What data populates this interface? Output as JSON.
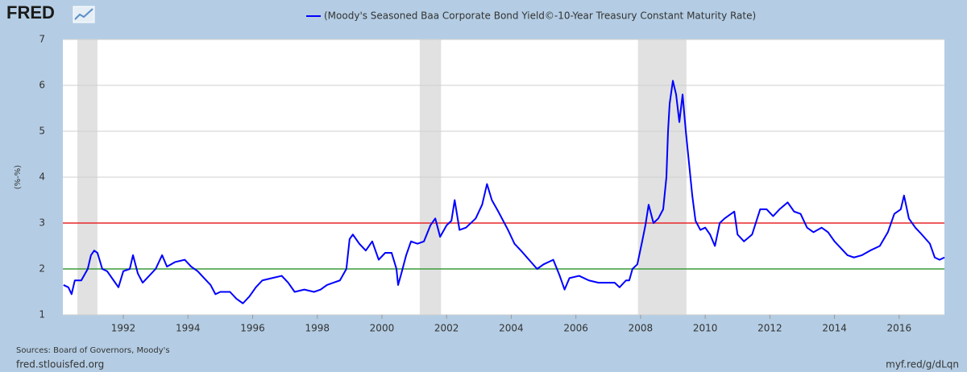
{
  "chart_data": {
    "type": "line",
    "logo": "FRED",
    "ylabel": "(%-%)",
    "source": "Sources: Board of Governors, Moody's",
    "site": "fred.stlouisfed.org",
    "short_url": "myf.red/g/dLqn",
    "xlim": [
      1990.13,
      2017.4
    ],
    "xticks": [
      1992,
      1994,
      1996,
      1998,
      2000,
      2002,
      2004,
      2006,
      2008,
      2010,
      2012,
      2014,
      2016
    ],
    "ylim": [
      1,
      7
    ],
    "yticks": [
      1,
      2,
      3,
      4,
      5,
      6,
      7
    ],
    "grid": true,
    "recessions": [
      [
        1990.58,
        1991.2
      ],
      [
        2001.17,
        2001.83
      ],
      [
        2007.92,
        2009.42
      ]
    ],
    "reference_lines": [
      {
        "value": 3,
        "color": "#e8272a"
      },
      {
        "value": 2,
        "color": "#3a9a3a"
      }
    ],
    "x": [
      1990.15,
      1990.3,
      1990.4,
      1990.5,
      1990.7,
      1990.9,
      1991.0,
      1991.1,
      1991.2,
      1991.35,
      1991.5,
      1991.7,
      1991.85,
      1992.0,
      1992.2,
      1992.3,
      1992.45,
      1992.6,
      1992.8,
      1993.0,
      1993.2,
      1993.35,
      1993.6,
      1993.9,
      1994.1,
      1994.3,
      1994.5,
      1994.7,
      1994.85,
      1995.0,
      1995.3,
      1995.5,
      1995.7,
      1995.9,
      1996.1,
      1996.3,
      1996.6,
      1996.9,
      1997.1,
      1997.3,
      1997.6,
      1997.9,
      1998.1,
      1998.3,
      1998.5,
      1998.7,
      1998.9,
      1999.0,
      1999.1,
      1999.3,
      1999.5,
      1999.7,
      1999.9,
      2000.1,
      2000.3,
      2000.45,
      2000.5,
      2000.6,
      2000.75,
      2000.9,
      2001.1,
      2001.3,
      2001.5,
      2001.65,
      2001.8,
      2002.0,
      2002.15,
      2002.25,
      2002.4,
      2002.6,
      2002.9,
      2003.1,
      2003.25,
      2003.4,
      2003.6,
      2003.9,
      2004.1,
      2004.3,
      2004.55,
      2004.8,
      2005.0,
      2005.3,
      2005.5,
      2005.65,
      2005.8,
      2006.1,
      2006.4,
      2006.7,
      2006.9,
      2007.2,
      2007.35,
      2007.55,
      2007.65,
      2007.75,
      2007.9,
      2008.05,
      2008.15,
      2008.25,
      2008.4,
      2008.55,
      2008.7,
      2008.8,
      2008.85,
      2008.9,
      2009.0,
      2009.1,
      2009.2,
      2009.3,
      2009.4,
      2009.5,
      2009.6,
      2009.7,
      2009.85,
      2010.0,
      2010.15,
      2010.3,
      2010.45,
      2010.6,
      2010.8,
      2010.9,
      2011.0,
      2011.2,
      2011.45,
      2011.7,
      2011.9,
      2012.1,
      2012.3,
      2012.55,
      2012.75,
      2012.95,
      2013.15,
      2013.35,
      2013.6,
      2013.8,
      2014.0,
      2014.2,
      2014.4,
      2014.6,
      2014.85,
      2015.1,
      2015.4,
      2015.65,
      2015.85,
      2016.05,
      2016.15,
      2016.3,
      2016.5,
      2016.7,
      2016.95,
      2017.1,
      2017.25,
      2017.4
    ],
    "series": [
      {
        "name": "(Moody's Seasoned Baa Corporate Bond Yield©-10-Year Treasury Constant Maturity Rate)",
        "color": "#0000ff",
        "values": [
          1.65,
          1.6,
          1.45,
          1.75,
          1.75,
          2.0,
          2.3,
          2.4,
          2.35,
          2.0,
          1.95,
          1.75,
          1.6,
          1.95,
          2.0,
          2.3,
          1.9,
          1.7,
          1.85,
          2.0,
          2.3,
          2.05,
          2.15,
          2.2,
          2.05,
          1.95,
          1.8,
          1.65,
          1.45,
          1.5,
          1.5,
          1.35,
          1.25,
          1.4,
          1.6,
          1.75,
          1.8,
          1.85,
          1.7,
          1.5,
          1.55,
          1.5,
          1.55,
          1.65,
          1.7,
          1.75,
          2.0,
          2.65,
          2.75,
          2.55,
          2.4,
          2.6,
          2.2,
          2.35,
          2.35,
          2.0,
          1.65,
          1.9,
          2.3,
          2.6,
          2.55,
          2.6,
          2.95,
          3.1,
          2.7,
          2.95,
          3.05,
          3.5,
          2.85,
          2.9,
          3.1,
          3.4,
          3.85,
          3.5,
          3.25,
          2.85,
          2.55,
          2.4,
          2.2,
          2.0,
          2.1,
          2.2,
          1.85,
          1.55,
          1.8,
          1.85,
          1.75,
          1.7,
          1.7,
          1.7,
          1.6,
          1.75,
          1.75,
          2.0,
          2.1,
          2.6,
          2.95,
          3.4,
          3.0,
          3.1,
          3.3,
          4.0,
          5.0,
          5.6,
          6.1,
          5.8,
          5.2,
          5.8,
          5.0,
          4.3,
          3.6,
          3.05,
          2.85,
          2.9,
          2.75,
          2.5,
          3.0,
          3.1,
          3.2,
          3.25,
          2.75,
          2.6,
          2.75,
          3.3,
          3.3,
          3.15,
          3.3,
          3.45,
          3.25,
          3.2,
          2.9,
          2.8,
          2.9,
          2.8,
          2.6,
          2.45,
          2.3,
          2.25,
          2.3,
          2.4,
          2.5,
          2.8,
          3.2,
          3.3,
          3.6,
          3.1,
          2.9,
          2.75,
          2.55,
          2.25,
          2.2,
          2.25
        ]
      }
    ]
  }
}
